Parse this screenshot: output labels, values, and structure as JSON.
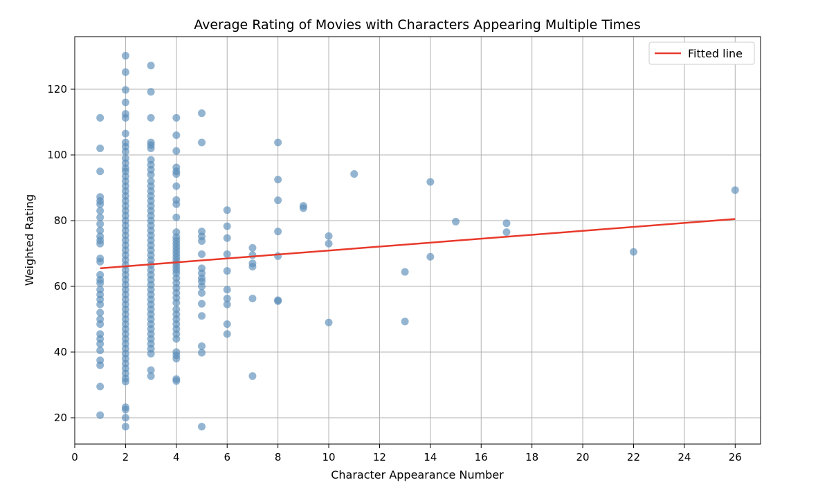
{
  "chart_data": {
    "type": "scatter",
    "title": "Average Rating of Movies with Characters Appearing Multiple Times",
    "xlabel": "Character Appearance Number",
    "ylabel": "Weighted Rating",
    "xlim": [
      0,
      27
    ],
    "ylim": [
      12,
      136
    ],
    "x_ticks": [
      0,
      2,
      4,
      6,
      8,
      10,
      12,
      14,
      16,
      18,
      20,
      22,
      24,
      26
    ],
    "y_ticks": [
      20,
      40,
      60,
      80,
      100,
      120
    ],
    "grid": true,
    "legend": {
      "position": "top-right",
      "entries": [
        "Fitted line"
      ]
    },
    "colors": {
      "points": "#5b8db8",
      "fit_line": "#e8392a",
      "grid": "#b0b0b0"
    },
    "fitted_line": {
      "name": "Fitted line",
      "x": [
        1,
        26
      ],
      "y": [
        65.5,
        80.5
      ]
    },
    "series": [
      {
        "points": [
          [
            1,
            111.3
          ],
          [
            1,
            102
          ],
          [
            1,
            95
          ],
          [
            1,
            87.2
          ],
          [
            1,
            86
          ],
          [
            1,
            85
          ],
          [
            1,
            83
          ],
          [
            1,
            81
          ],
          [
            1,
            79
          ],
          [
            1,
            77
          ],
          [
            1,
            75.2
          ],
          [
            1,
            74
          ],
          [
            1,
            73
          ],
          [
            1,
            68.5
          ],
          [
            1,
            67.5
          ],
          [
            1,
            63.5
          ],
          [
            1,
            62
          ],
          [
            1,
            61
          ],
          [
            1,
            59
          ],
          [
            1,
            57.5
          ],
          [
            1,
            56
          ],
          [
            1,
            54.5
          ],
          [
            1,
            52
          ],
          [
            1,
            50
          ],
          [
            1,
            48.5
          ],
          [
            1,
            45.5
          ],
          [
            1,
            44
          ],
          [
            1,
            42.5
          ],
          [
            1,
            40.5
          ],
          [
            1,
            37.5
          ],
          [
            1,
            36
          ],
          [
            1,
            29.5
          ],
          [
            1,
            20.8
          ],
          [
            2,
            130.2
          ],
          [
            2,
            125.2
          ],
          [
            2,
            119.8
          ],
          [
            2,
            116
          ],
          [
            2,
            112.5
          ],
          [
            2,
            111.3
          ],
          [
            2,
            106.5
          ],
          [
            2,
            103.8
          ],
          [
            2,
            102.5
          ],
          [
            2,
            101
          ],
          [
            2,
            99
          ],
          [
            2,
            97.5
          ],
          [
            2,
            96
          ],
          [
            2,
            95
          ],
          [
            2,
            93.5
          ],
          [
            2,
            92
          ],
          [
            2,
            90.5
          ],
          [
            2,
            89
          ],
          [
            2,
            87.5
          ],
          [
            2,
            86
          ],
          [
            2,
            84.5
          ],
          [
            2,
            83
          ],
          [
            2,
            81.5
          ],
          [
            2,
            80
          ],
          [
            2,
            78.5
          ],
          [
            2,
            77
          ],
          [
            2,
            75.5
          ],
          [
            2,
            74
          ],
          [
            2,
            72.5
          ],
          [
            2,
            71
          ],
          [
            2,
            69.5
          ],
          [
            2,
            68
          ],
          [
            2,
            66.5
          ],
          [
            2,
            65
          ],
          [
            2,
            63.5
          ],
          [
            2,
            62
          ],
          [
            2,
            60.5
          ],
          [
            2,
            59
          ],
          [
            2,
            57.5
          ],
          [
            2,
            56
          ],
          [
            2,
            54.5
          ],
          [
            2,
            53
          ],
          [
            2,
            51.5
          ],
          [
            2,
            50
          ],
          [
            2,
            48.5
          ],
          [
            2,
            47
          ],
          [
            2,
            45.5
          ],
          [
            2,
            44
          ],
          [
            2,
            42.5
          ],
          [
            2,
            41
          ],
          [
            2,
            39.5
          ],
          [
            2,
            38
          ],
          [
            2,
            36.5
          ],
          [
            2,
            35
          ],
          [
            2,
            33.5
          ],
          [
            2,
            32
          ],
          [
            2,
            31
          ],
          [
            2,
            23.2
          ],
          [
            2,
            22.5
          ],
          [
            2,
            20
          ],
          [
            2,
            17.3
          ],
          [
            3,
            127.2
          ],
          [
            3,
            119.2
          ],
          [
            3,
            111.3
          ],
          [
            3,
            103.8
          ],
          [
            3,
            103
          ],
          [
            3,
            102
          ],
          [
            3,
            98.5
          ],
          [
            3,
            97
          ],
          [
            3,
            95.5
          ],
          [
            3,
            94
          ],
          [
            3,
            92
          ],
          [
            3,
            90.5
          ],
          [
            3,
            89
          ],
          [
            3,
            87.5
          ],
          [
            3,
            86
          ],
          [
            3,
            84.5
          ],
          [
            3,
            83
          ],
          [
            3,
            81.5
          ],
          [
            3,
            80
          ],
          [
            3,
            78.5
          ],
          [
            3,
            77
          ],
          [
            3,
            75.5
          ],
          [
            3,
            74
          ],
          [
            3,
            72.5
          ],
          [
            3,
            71
          ],
          [
            3,
            69.5
          ],
          [
            3,
            68
          ],
          [
            3,
            66.5
          ],
          [
            3,
            65
          ],
          [
            3,
            63.5
          ],
          [
            3,
            62
          ],
          [
            3,
            60.5
          ],
          [
            3,
            59
          ],
          [
            3,
            57.5
          ],
          [
            3,
            56
          ],
          [
            3,
            54.5
          ],
          [
            3,
            53
          ],
          [
            3,
            51.5
          ],
          [
            3,
            50
          ],
          [
            3,
            48.5
          ],
          [
            3,
            47
          ],
          [
            3,
            45.5
          ],
          [
            3,
            44
          ],
          [
            3,
            42.5
          ],
          [
            3,
            41
          ],
          [
            3,
            39.5
          ],
          [
            3,
            34.5
          ],
          [
            3,
            32.7
          ],
          [
            4,
            111.3
          ],
          [
            4,
            106
          ],
          [
            4,
            101.2
          ],
          [
            4,
            96.2
          ],
          [
            4,
            95
          ],
          [
            4,
            94.2
          ],
          [
            4,
            90.5
          ],
          [
            4,
            86.3
          ],
          [
            4,
            85
          ],
          [
            4,
            81
          ],
          [
            4,
            76.5
          ],
          [
            4,
            75
          ],
          [
            4,
            74
          ],
          [
            4,
            73
          ],
          [
            4,
            72
          ],
          [
            4,
            71
          ],
          [
            4,
            70
          ],
          [
            4,
            69
          ],
          [
            4,
            68
          ],
          [
            4,
            67
          ],
          [
            4,
            66
          ],
          [
            4,
            65
          ],
          [
            4,
            64
          ],
          [
            4,
            62.5
          ],
          [
            4,
            61
          ],
          [
            4,
            59.5
          ],
          [
            4,
            58
          ],
          [
            4,
            56.5
          ],
          [
            4,
            55
          ],
          [
            4,
            53
          ],
          [
            4,
            51.5
          ],
          [
            4,
            50
          ],
          [
            4,
            48.5
          ],
          [
            4,
            47
          ],
          [
            4,
            45.5
          ],
          [
            4,
            44
          ],
          [
            4,
            40
          ],
          [
            4,
            39
          ],
          [
            4,
            38
          ],
          [
            4,
            31.8
          ],
          [
            4,
            31.2
          ],
          [
            5,
            112.7
          ],
          [
            5,
            103.8
          ],
          [
            5,
            76.7
          ],
          [
            5,
            75.2
          ],
          [
            5,
            73.8
          ],
          [
            5,
            69.8
          ],
          [
            5,
            65.5
          ],
          [
            5,
            64
          ],
          [
            5,
            62.5
          ],
          [
            5,
            61.5
          ],
          [
            5,
            60
          ],
          [
            5,
            58
          ],
          [
            5,
            54.7
          ],
          [
            5,
            51
          ],
          [
            5,
            41.8
          ],
          [
            5,
            39.8
          ],
          [
            5,
            17.3
          ],
          [
            6,
            83.2
          ],
          [
            6,
            78.3
          ],
          [
            6,
            74.7
          ],
          [
            6,
            69.8
          ],
          [
            6,
            64.7
          ],
          [
            6,
            59
          ],
          [
            6,
            56.3
          ],
          [
            6,
            54.5
          ],
          [
            6,
            48.5
          ],
          [
            6,
            45.5
          ],
          [
            7,
            71.7
          ],
          [
            7,
            69.5
          ],
          [
            7,
            67
          ],
          [
            7,
            66
          ],
          [
            7,
            56.3
          ],
          [
            7,
            32.7
          ],
          [
            8,
            103.8
          ],
          [
            8,
            92.5
          ],
          [
            8,
            86.2
          ],
          [
            8,
            76.7
          ],
          [
            8,
            69.2
          ],
          [
            8,
            55.8
          ],
          [
            8,
            55.5
          ],
          [
            9,
            84.5
          ],
          [
            9,
            83.8
          ],
          [
            10,
            75.3
          ],
          [
            10,
            73
          ],
          [
            10,
            49
          ],
          [
            11,
            94.2
          ],
          [
            13,
            64.4
          ],
          [
            13,
            49.3
          ],
          [
            14,
            91.8
          ],
          [
            14,
            69
          ],
          [
            15,
            79.7
          ],
          [
            17,
            79.2
          ],
          [
            17,
            76.5
          ],
          [
            22,
            70.5
          ],
          [
            26,
            89.3
          ]
        ]
      }
    ]
  }
}
